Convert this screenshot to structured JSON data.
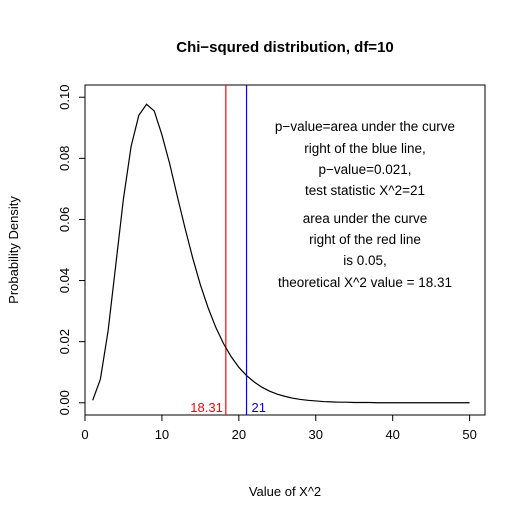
{
  "chart_data": {
    "type": "line",
    "title": "Chi−squred distribution, df=10",
    "xlabel": "Value of X^2",
    "ylabel": "Probability Density",
    "xlim": [
      0,
      52
    ],
    "ylim": [
      -0.004,
      0.104
    ],
    "x_ticks": [
      0,
      10,
      20,
      30,
      40,
      50
    ],
    "y_ticks": [
      0.0,
      0.02,
      0.04,
      0.06,
      0.08,
      0.1
    ],
    "x_tick_labels": [
      "0",
      "10",
      "20",
      "30",
      "40",
      "50"
    ],
    "y_tick_labels": [
      "0.00",
      "0.02",
      "0.04",
      "0.06",
      "0.08",
      "0.10"
    ],
    "grid": false,
    "series": [
      {
        "color": "#000000",
        "x": [
          1,
          2,
          3,
          4,
          5,
          6,
          7,
          8,
          9,
          10,
          11,
          12,
          13,
          14,
          15,
          16,
          17,
          18,
          19,
          20,
          21,
          22,
          23,
          24,
          25,
          26,
          27,
          28,
          29,
          30,
          31,
          32,
          33,
          34,
          35,
          36,
          37,
          38,
          39,
          40,
          41,
          42,
          43,
          44,
          45,
          46,
          47,
          48,
          49,
          50
        ],
        "y": [
          0.0008,
          0.0077,
          0.0235,
          0.0451,
          0.0668,
          0.084,
          0.0941,
          0.0977,
          0.0955,
          0.0877,
          0.0783,
          0.0676,
          0.0572,
          0.0474,
          0.0386,
          0.0311,
          0.0247,
          0.0194,
          0.0151,
          0.0116,
          0.0089,
          0.0068,
          0.0051,
          0.0038,
          0.0028,
          0.0021,
          0.0015,
          0.0011,
          0.0008,
          0.0006,
          0.0004,
          0.0003,
          0.0002,
          0.0002,
          0.0001,
          0.0001,
          0.0001,
          0.0,
          0.0,
          0.0,
          0.0,
          0.0,
          0.0,
          0.0,
          0.0,
          0.0,
          0.0,
          0.0,
          0.0,
          0.0
        ]
      }
    ],
    "vlines": [
      {
        "x": 18.31,
        "color": "#ff0000",
        "label": "18.31"
      },
      {
        "x": 21,
        "color": "#0000ff",
        "label": "21"
      }
    ],
    "annotations": [
      "p−value=area under the curve",
      "right of the blue line,",
      "p−value=0.021,",
      "test statistic X^2=21",
      "area under the curve",
      "right of the red line",
      "is 0.05,",
      "theoretical X^2 value = 18.31"
    ]
  }
}
